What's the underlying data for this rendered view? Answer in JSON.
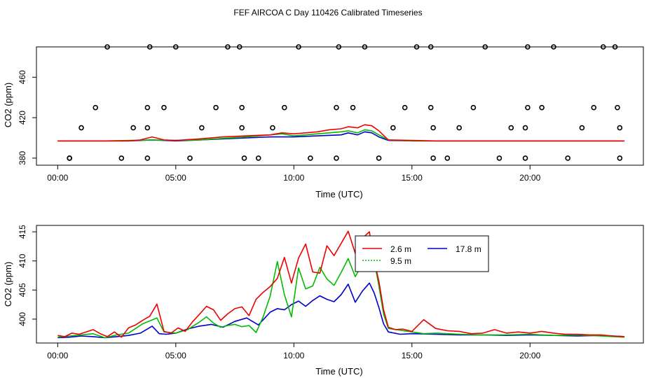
{
  "title": "FEF AIRCOA C  Day 110426  Calibrated Timeseries",
  "colors": {
    "red": "#ee0000",
    "green": "#00bb00",
    "blue": "#0000cc",
    "black": "#000000"
  },
  "chart_data": [
    {
      "type": "line",
      "xlabel": "Time (UTC)",
      "ylabel": "CO2 (ppm)",
      "xlim": [
        -0.9,
        24.8
      ],
      "ylim": [
        373,
        490
      ],
      "xticks": [
        0,
        5,
        10,
        15,
        20
      ],
      "xtick_labels": [
        "00:00",
        "05:00",
        "10:00",
        "15:00",
        "20:00"
      ],
      "yticks": [
        380,
        420,
        460
      ],
      "ytick_labels": [
        "380",
        "420",
        "460"
      ],
      "series": [
        {
          "color": "red",
          "x": [
            0,
            1,
            2,
            3,
            3.5,
            4,
            4.5,
            5,
            6,
            7,
            8,
            9,
            9.5,
            10,
            10.5,
            11,
            11.5,
            12,
            12.3,
            12.7,
            13,
            13.3,
            13.6,
            14,
            15,
            16,
            17,
            18,
            19,
            20,
            21,
            22,
            23,
            24
          ],
          "y": [
            397,
            397,
            397,
            397,
            398,
            401,
            398,
            397.5,
            399,
            401,
            402,
            403,
            405,
            404,
            405,
            406,
            408,
            409,
            411,
            410,
            413,
            412,
            407,
            398,
            397.5,
            397,
            397,
            397,
            397,
            397,
            397,
            397,
            397,
            397
          ]
        },
        {
          "color": "green",
          "x": [
            0,
            2,
            4,
            5,
            6,
            7,
            8,
            9,
            9.5,
            10,
            10.5,
            11,
            11.5,
            12,
            12.3,
            12.7,
            13,
            13.3,
            13.6,
            14,
            15,
            24
          ],
          "y": [
            397,
            397,
            398,
            397.5,
            398,
            399.5,
            401,
            403,
            404,
            402,
            403,
            404,
            405,
            406,
            407,
            405,
            408,
            407,
            403,
            398,
            397,
            397
          ]
        },
        {
          "color": "blue",
          "x": [
            0,
            3,
            4,
            5,
            6,
            7,
            8,
            9,
            10,
            11,
            12,
            12.3,
            12.7,
            13,
            13.3,
            13.6,
            14,
            15,
            24
          ],
          "y": [
            397,
            397,
            398,
            397,
            398,
            399,
            400,
            401,
            401,
            402,
            403,
            405,
            403,
            406,
            405,
            401,
            397.5,
            397,
            397
          ]
        },
        {
          "color": "black",
          "style": "points",
          "x": [
            0.5,
            2.1,
            3.9,
            5,
            7.2,
            7.7,
            10.2,
            11.9,
            13,
            15.2,
            15.8,
            18.1,
            19.9,
            21,
            23.1,
            23.6,
            1.6,
            3.8,
            4.5,
            6.7,
            7.8,
            9.6,
            11.8,
            12.5,
            14.7,
            15.8,
            17.6,
            19.9,
            20.5,
            22.7,
            23.7,
            1,
            3.2,
            3.8,
            6.1,
            7.8,
            9.1,
            14.2,
            15.9,
            17,
            19.2,
            19.8,
            22.2,
            23.8,
            0.5,
            2.7,
            3.8,
            5.6,
            7.9,
            8.5,
            10.7,
            11.8,
            13.6,
            15.9,
            16.5,
            18.7,
            19.8,
            21.6,
            23.8
          ],
          "y": [
            380,
            490,
            490,
            490,
            490,
            490,
            490,
            490,
            490,
            490,
            490,
            490,
            490,
            490,
            490,
            490,
            430,
            430,
            430,
            430,
            430,
            430,
            430,
            430,
            430,
            430,
            430,
            430,
            430,
            430,
            430,
            410,
            410,
            410,
            410,
            410,
            410,
            410,
            410,
            410,
            410,
            410,
            410,
            410,
            380,
            380,
            380,
            380,
            380,
            380,
            380,
            380,
            380,
            380,
            380,
            380,
            380,
            380,
            380
          ]
        }
      ]
    },
    {
      "type": "line",
      "xlabel": "Time (UTC)",
      "ylabel": "CO2 (ppm)",
      "xlim": [
        -0.9,
        24.8
      ],
      "ylim": [
        395.9,
        416.1
      ],
      "xticks": [
        0,
        5,
        10,
        15,
        20
      ],
      "xtick_labels": [
        "00:00",
        "05:00",
        "10:00",
        "15:00",
        "20:00"
      ],
      "yticks": [
        400,
        405,
        410,
        415
      ],
      "ytick_labels": [
        "400",
        "405",
        "410",
        "415"
      ],
      "legend": "top-center",
      "legend_entries": [
        "2.6 m",
        "9.5 m",
        "17.8 m"
      ],
      "series": [
        {
          "name": "2.6 m",
          "color": "red",
          "x": [
            0,
            0.3,
            0.6,
            0.9,
            1.2,
            1.5,
            1.8,
            2.1,
            2.4,
            2.7,
            3.0,
            3.3,
            3.6,
            3.9,
            4.2,
            4.5,
            4.8,
            5.1,
            5.4,
            5.7,
            6.0,
            6.3,
            6.6,
            6.9,
            7.2,
            7.5,
            7.8,
            8.1,
            8.4,
            8.7,
            9.0,
            9.3,
            9.6,
            9.9,
            10.2,
            10.5,
            10.8,
            11.1,
            11.4,
            11.7,
            12.0,
            12.3,
            12.6,
            12.9,
            13.2,
            13.4,
            13.6,
            13.8,
            14.0,
            14.3,
            14.6,
            15.0,
            15.5,
            16.0,
            16.5,
            17,
            17.5,
            18,
            18.5,
            19,
            19.5,
            20,
            20.5,
            21,
            21.5,
            22,
            22.5,
            23,
            23.5,
            24
          ],
          "y": [
            397.2,
            397.0,
            397.6,
            397.4,
            397.8,
            398.2,
            397.5,
            397.0,
            397.8,
            396.9,
            398.5,
            399.0,
            399.8,
            400.5,
            402.6,
            397.9,
            397.6,
            398.5,
            397.9,
            399.5,
            400.8,
            402.2,
            401.6,
            399.8,
            400.9,
            401.8,
            402.1,
            400.6,
            403.4,
            404.6,
            405.6,
            407.0,
            410.6,
            406.2,
            410.5,
            412.9,
            408.1,
            407.9,
            412.6,
            410.9,
            413.0,
            415.1,
            411.3,
            413.9,
            415.0,
            410.0,
            406.5,
            401.6,
            398.6,
            398.2,
            398.3,
            397.9,
            399.9,
            398.4,
            398.0,
            397.9,
            397.5,
            397.6,
            398.2,
            397.6,
            397.8,
            397.6,
            397.9,
            397.6,
            397.4,
            397.4,
            397.3,
            397.3,
            397.1,
            397.0
          ]
        },
        {
          "name": "9.5 m",
          "color": "green",
          "x": [
            0,
            0.5,
            1,
            1.5,
            2,
            2.5,
            3,
            3.3,
            3.6,
            3.9,
            4.2,
            4.5,
            5,
            5.5,
            6,
            6.3,
            6.6,
            6.9,
            7.2,
            7.5,
            7.8,
            8.1,
            8.4,
            8.7,
            9.0,
            9.3,
            9.6,
            9.9,
            10.2,
            10.5,
            10.8,
            11.1,
            11.4,
            11.7,
            12.0,
            12.3,
            12.6,
            12.9,
            13.2,
            13.4,
            13.6,
            13.8,
            14.0,
            14.5,
            15,
            15.5,
            16,
            17,
            18,
            19,
            20,
            21,
            22,
            23,
            24
          ],
          "y": [
            396.9,
            397.1,
            397.3,
            397.5,
            396.8,
            397.3,
            397.6,
            398.4,
            399.2,
            399.7,
            400.2,
            397.8,
            397.6,
            398.2,
            399.5,
            400.4,
            399.3,
            398.6,
            398.9,
            399.1,
            398.7,
            398.9,
            397.7,
            400.4,
            404.0,
            409.9,
            404.2,
            400.4,
            408.8,
            405.2,
            405.7,
            408.9,
            406.9,
            405.8,
            408.0,
            410.4,
            407.3,
            409.4,
            408.4,
            410.1,
            405.7,
            400.9,
            398.4,
            398.1,
            397.8,
            397.5,
            397.6,
            397.4,
            397.3,
            397.3,
            397.4,
            397.2,
            397.3,
            397.1,
            396.9
          ]
        },
        {
          "name": "17.8 m",
          "color": "blue",
          "x": [
            0,
            0.5,
            1,
            1.5,
            2,
            2.5,
            3,
            3.5,
            4,
            4.3,
            4.6,
            5,
            5.5,
            6,
            6.5,
            7,
            7.5,
            8,
            8.5,
            9,
            9.3,
            9.6,
            9.9,
            10.2,
            10.5,
            10.8,
            11.1,
            11.4,
            11.7,
            12,
            12.3,
            12.6,
            12.9,
            13.2,
            13.4,
            13.6,
            13.8,
            14,
            14.5,
            15,
            16,
            17,
            18,
            19,
            20,
            21,
            22,
            23,
            24
          ],
          "y": [
            396.8,
            396.9,
            397.1,
            397.0,
            396.8,
            397.0,
            397.2,
            397.6,
            398.8,
            397.5,
            397.4,
            397.6,
            398.3,
            398.8,
            399.1,
            398.6,
            399.6,
            400.2,
            399.0,
            401.2,
            401.8,
            401.6,
            402.5,
            403.1,
            402.2,
            403.2,
            404.0,
            403.4,
            403.0,
            404.2,
            406.0,
            402.9,
            404.8,
            406.2,
            404.5,
            402.0,
            399.2,
            397.8,
            397.4,
            397.5,
            397.4,
            397.3,
            397.3,
            397.2,
            397.3,
            397.2,
            397.1,
            397.2,
            397.0
          ]
        }
      ]
    }
  ]
}
